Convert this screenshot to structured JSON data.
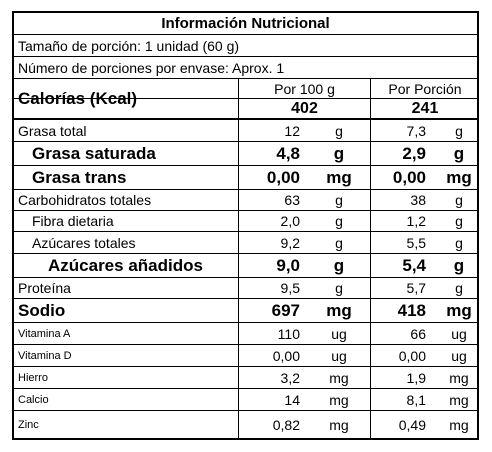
{
  "title": "Información Nutricional",
  "serving_size": "Tamaño de porción: 1 unidad (60 g)",
  "servings_per_container": "Número de porciones por envase: Aprox. 1",
  "calories": {
    "label": "Calorías (Kcal)",
    "per100_header": "Por 100 g",
    "perportion_header": "Por Porción",
    "per100_value": "402",
    "perportion_value": "241"
  },
  "nutrients": [
    {
      "name": "Grasa total",
      "v100": "12",
      "u100": "g",
      "vpor": "7,3",
      "upor": "g"
    },
    {
      "name": "Grasa saturada",
      "v100": "4,8",
      "u100": "g",
      "vpor": "2,9",
      "upor": "g"
    },
    {
      "name": "Grasa trans",
      "v100": "0,00",
      "u100": "mg",
      "vpor": "0,00",
      "upor": "mg"
    },
    {
      "name": "Carbohidratos totales",
      "v100": "63",
      "u100": "g",
      "vpor": "38",
      "upor": "g"
    },
    {
      "name": "Fibra dietaria",
      "v100": "2,0",
      "u100": "g",
      "vpor": "1,2",
      "upor": "g"
    },
    {
      "name": "Azúcares totales",
      "v100": "9,2",
      "u100": "g",
      "vpor": "5,5",
      "upor": "g"
    },
    {
      "name": "Azúcares añadidos",
      "v100": "9,0",
      "u100": "g",
      "vpor": "5,4",
      "upor": "g"
    },
    {
      "name": "Proteína",
      "v100": "9,5",
      "u100": "g",
      "vpor": "5,7",
      "upor": "g"
    },
    {
      "name": "Sodio",
      "v100": "697",
      "u100": "mg",
      "vpor": "418",
      "upor": "mg"
    },
    {
      "name": "Vitamina A",
      "v100": "110",
      "u100": "ug",
      "vpor": "66",
      "upor": "ug"
    },
    {
      "name": "Vitamina D",
      "v100": "0,00",
      "u100": "ug",
      "vpor": "0,00",
      "upor": "ug"
    },
    {
      "name": "Hierro",
      "v100": "3,2",
      "u100": "mg",
      "vpor": "1,9",
      "upor": "mg"
    },
    {
      "name": "Calcio",
      "v100": "14",
      "u100": "mg",
      "vpor": "8,1",
      "upor": "mg"
    },
    {
      "name": "Zinc",
      "v100": "0,82",
      "u100": "mg",
      "vpor": "0,49",
      "upor": "mg"
    }
  ]
}
